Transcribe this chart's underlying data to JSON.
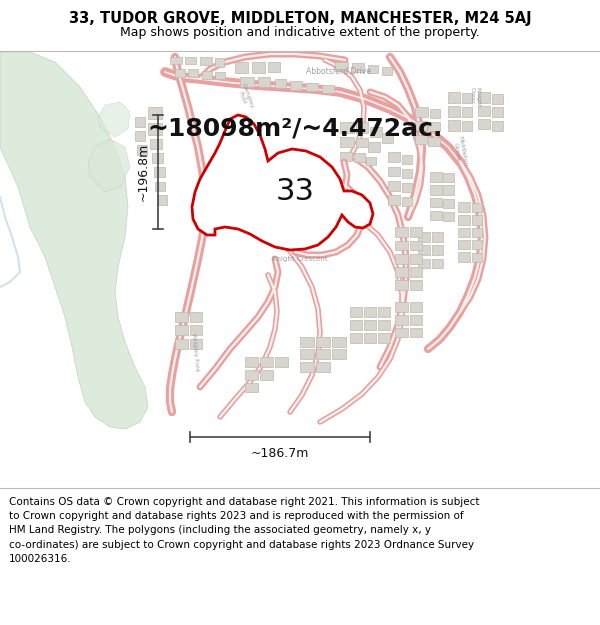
{
  "title_line1": "33, TUDOR GROVE, MIDDLETON, MANCHESTER, M24 5AJ",
  "title_line2": "Map shows position and indicative extent of the property.",
  "area_text": "~18098m²/~4.472ac.",
  "property_number": "33",
  "measurement_vertical": "~196.8m",
  "measurement_horizontal": "~186.7m",
  "footer_lines": [
    "Contains OS data © Crown copyright and database right 2021. This information is subject",
    "to Crown copyright and database rights 2023 and is reproduced with the permission of",
    "HM Land Registry. The polygons (including the associated geometry, namely x, y",
    "co-ordinates) are subject to Crown copyright and database rights 2023 Ordnance Survey",
    "100026316."
  ],
  "bg_color": "#f5f2ee",
  "road_outline_color": "#e8a0a0",
  "road_fill_color": "#f5f2ee",
  "building_fill": "#d8d4ce",
  "building_edge": "#c0b8b0",
  "green_area_color": "#d8e8d8",
  "green_area_edge": "#b8ccb8",
  "property_fill": "#ffffff",
  "property_edge": "#cc0000",
  "text_color": "#111111",
  "measure_color": "#444444",
  "title_fontsize": 10.5,
  "subtitle_fontsize": 9,
  "area_fontsize": 18,
  "number_fontsize": 22,
  "measure_fontsize": 9,
  "footer_fontsize": 7.5
}
